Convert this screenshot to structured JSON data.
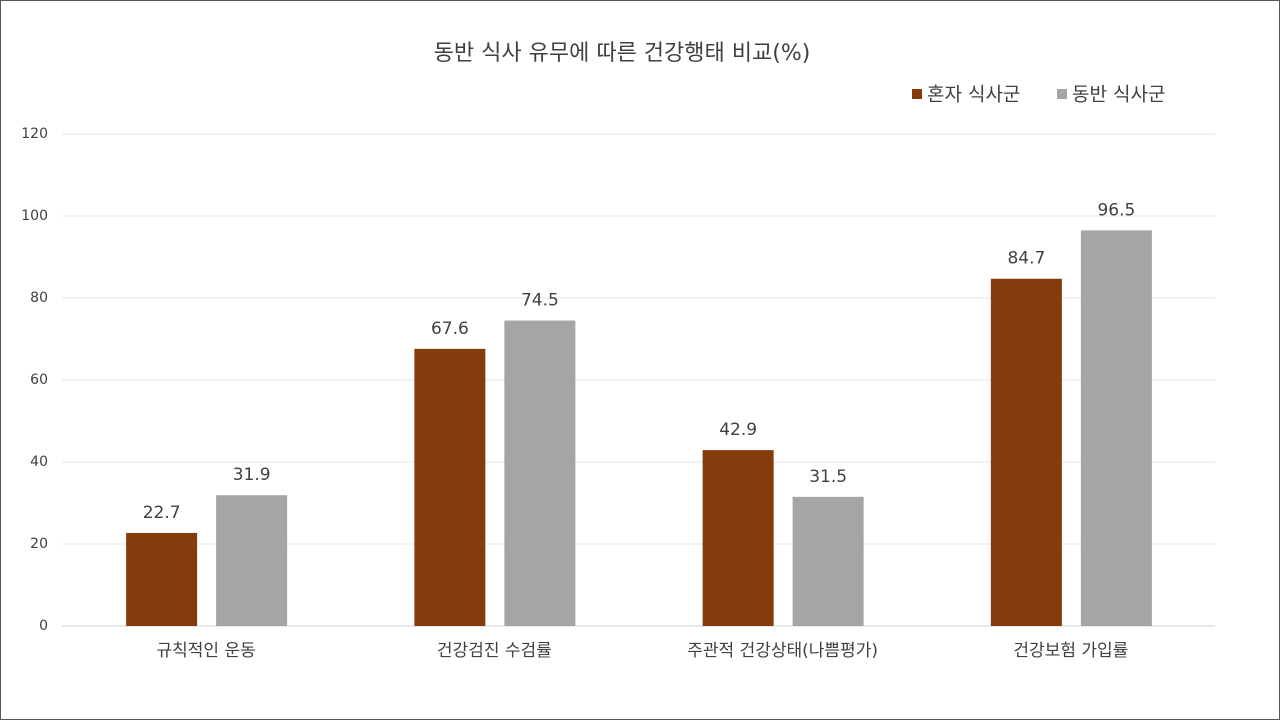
{
  "chart_data": {
    "type": "bar",
    "title": "동반 식사 유무에 따른 건강행태 비교(%)",
    "categories": [
      "규칙적인 운동",
      "건강검진 수검률",
      "주관적 건강상태(나쁨평가)",
      "건강보험 가입률"
    ],
    "series": [
      {
        "name": "혼자 식사군",
        "color": "#843c0c",
        "values": [
          22.7,
          67.6,
          42.9,
          84.7
        ]
      },
      {
        "name": "동반 식사군",
        "color": "#a5a5a5",
        "values": [
          31.9,
          74.5,
          31.5,
          96.5
        ]
      }
    ],
    "ylim": [
      0,
      120
    ],
    "yticks": [
      0,
      20,
      40,
      60,
      80,
      100,
      120
    ],
    "grid": true,
    "legend": "top-right"
  }
}
